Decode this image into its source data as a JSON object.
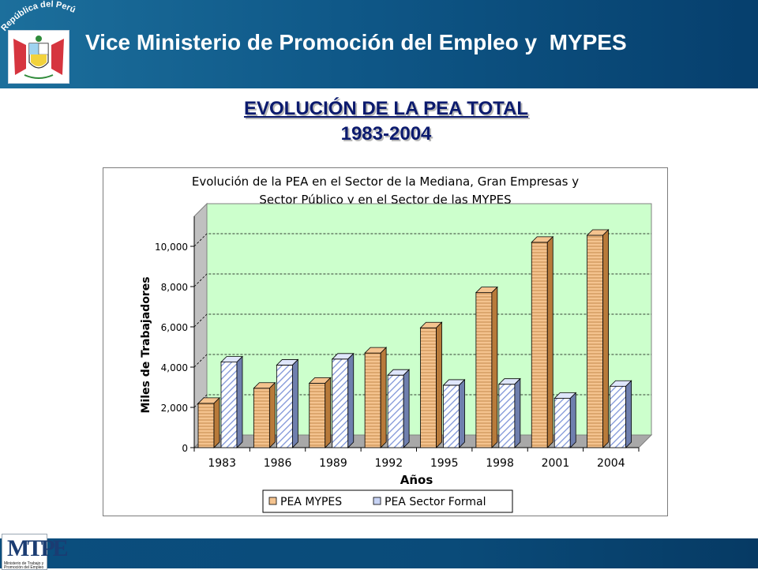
{
  "header": {
    "crest_caption": "República del Perú",
    "title": "Vice Ministerio de Promoción del Empleo y  MYPES"
  },
  "page_heading": {
    "title": "EVOLUCIÓN DE LA PEA TOTAL",
    "period": "1983-2004"
  },
  "footer": {
    "logo_mark": "MTPE",
    "logo_caption": "Ministerio de Trabajo y Promoción del Empleo"
  },
  "colors": {
    "header_blue": "#0f5888",
    "plot_background": "#ccffcc",
    "mypes_bar": "#f4c38f",
    "formal_bar": "#c7d3f4"
  },
  "chart_data": {
    "type": "bar",
    "title_line1": "Evolución de la PEA en el Sector de la Mediana, Gran Empresas y",
    "title_line2": "Sector Público y en el Sector de las MYPES",
    "categories": [
      "1983",
      "1986",
      "1989",
      "1992",
      "1995",
      "1998",
      "2001",
      "2004"
    ],
    "series": [
      {
        "name": "PEA MYPES",
        "values": [
          2200,
          2950,
          3200,
          4700,
          5950,
          7700,
          10200,
          10550
        ]
      },
      {
        "name": "PEA Sector Formal",
        "values": [
          4250,
          4100,
          4400,
          3600,
          3100,
          3150,
          2450,
          3050
        ]
      }
    ],
    "xlabel": "Años",
    "ylabel": "Miles de Trabajadores",
    "ylim": [
      0,
      10000
    ],
    "yticks": [
      "0",
      "2,000",
      "4,000",
      "6,000",
      "8,000",
      "10,000"
    ],
    "grid": true,
    "legend_position": "bottom"
  }
}
